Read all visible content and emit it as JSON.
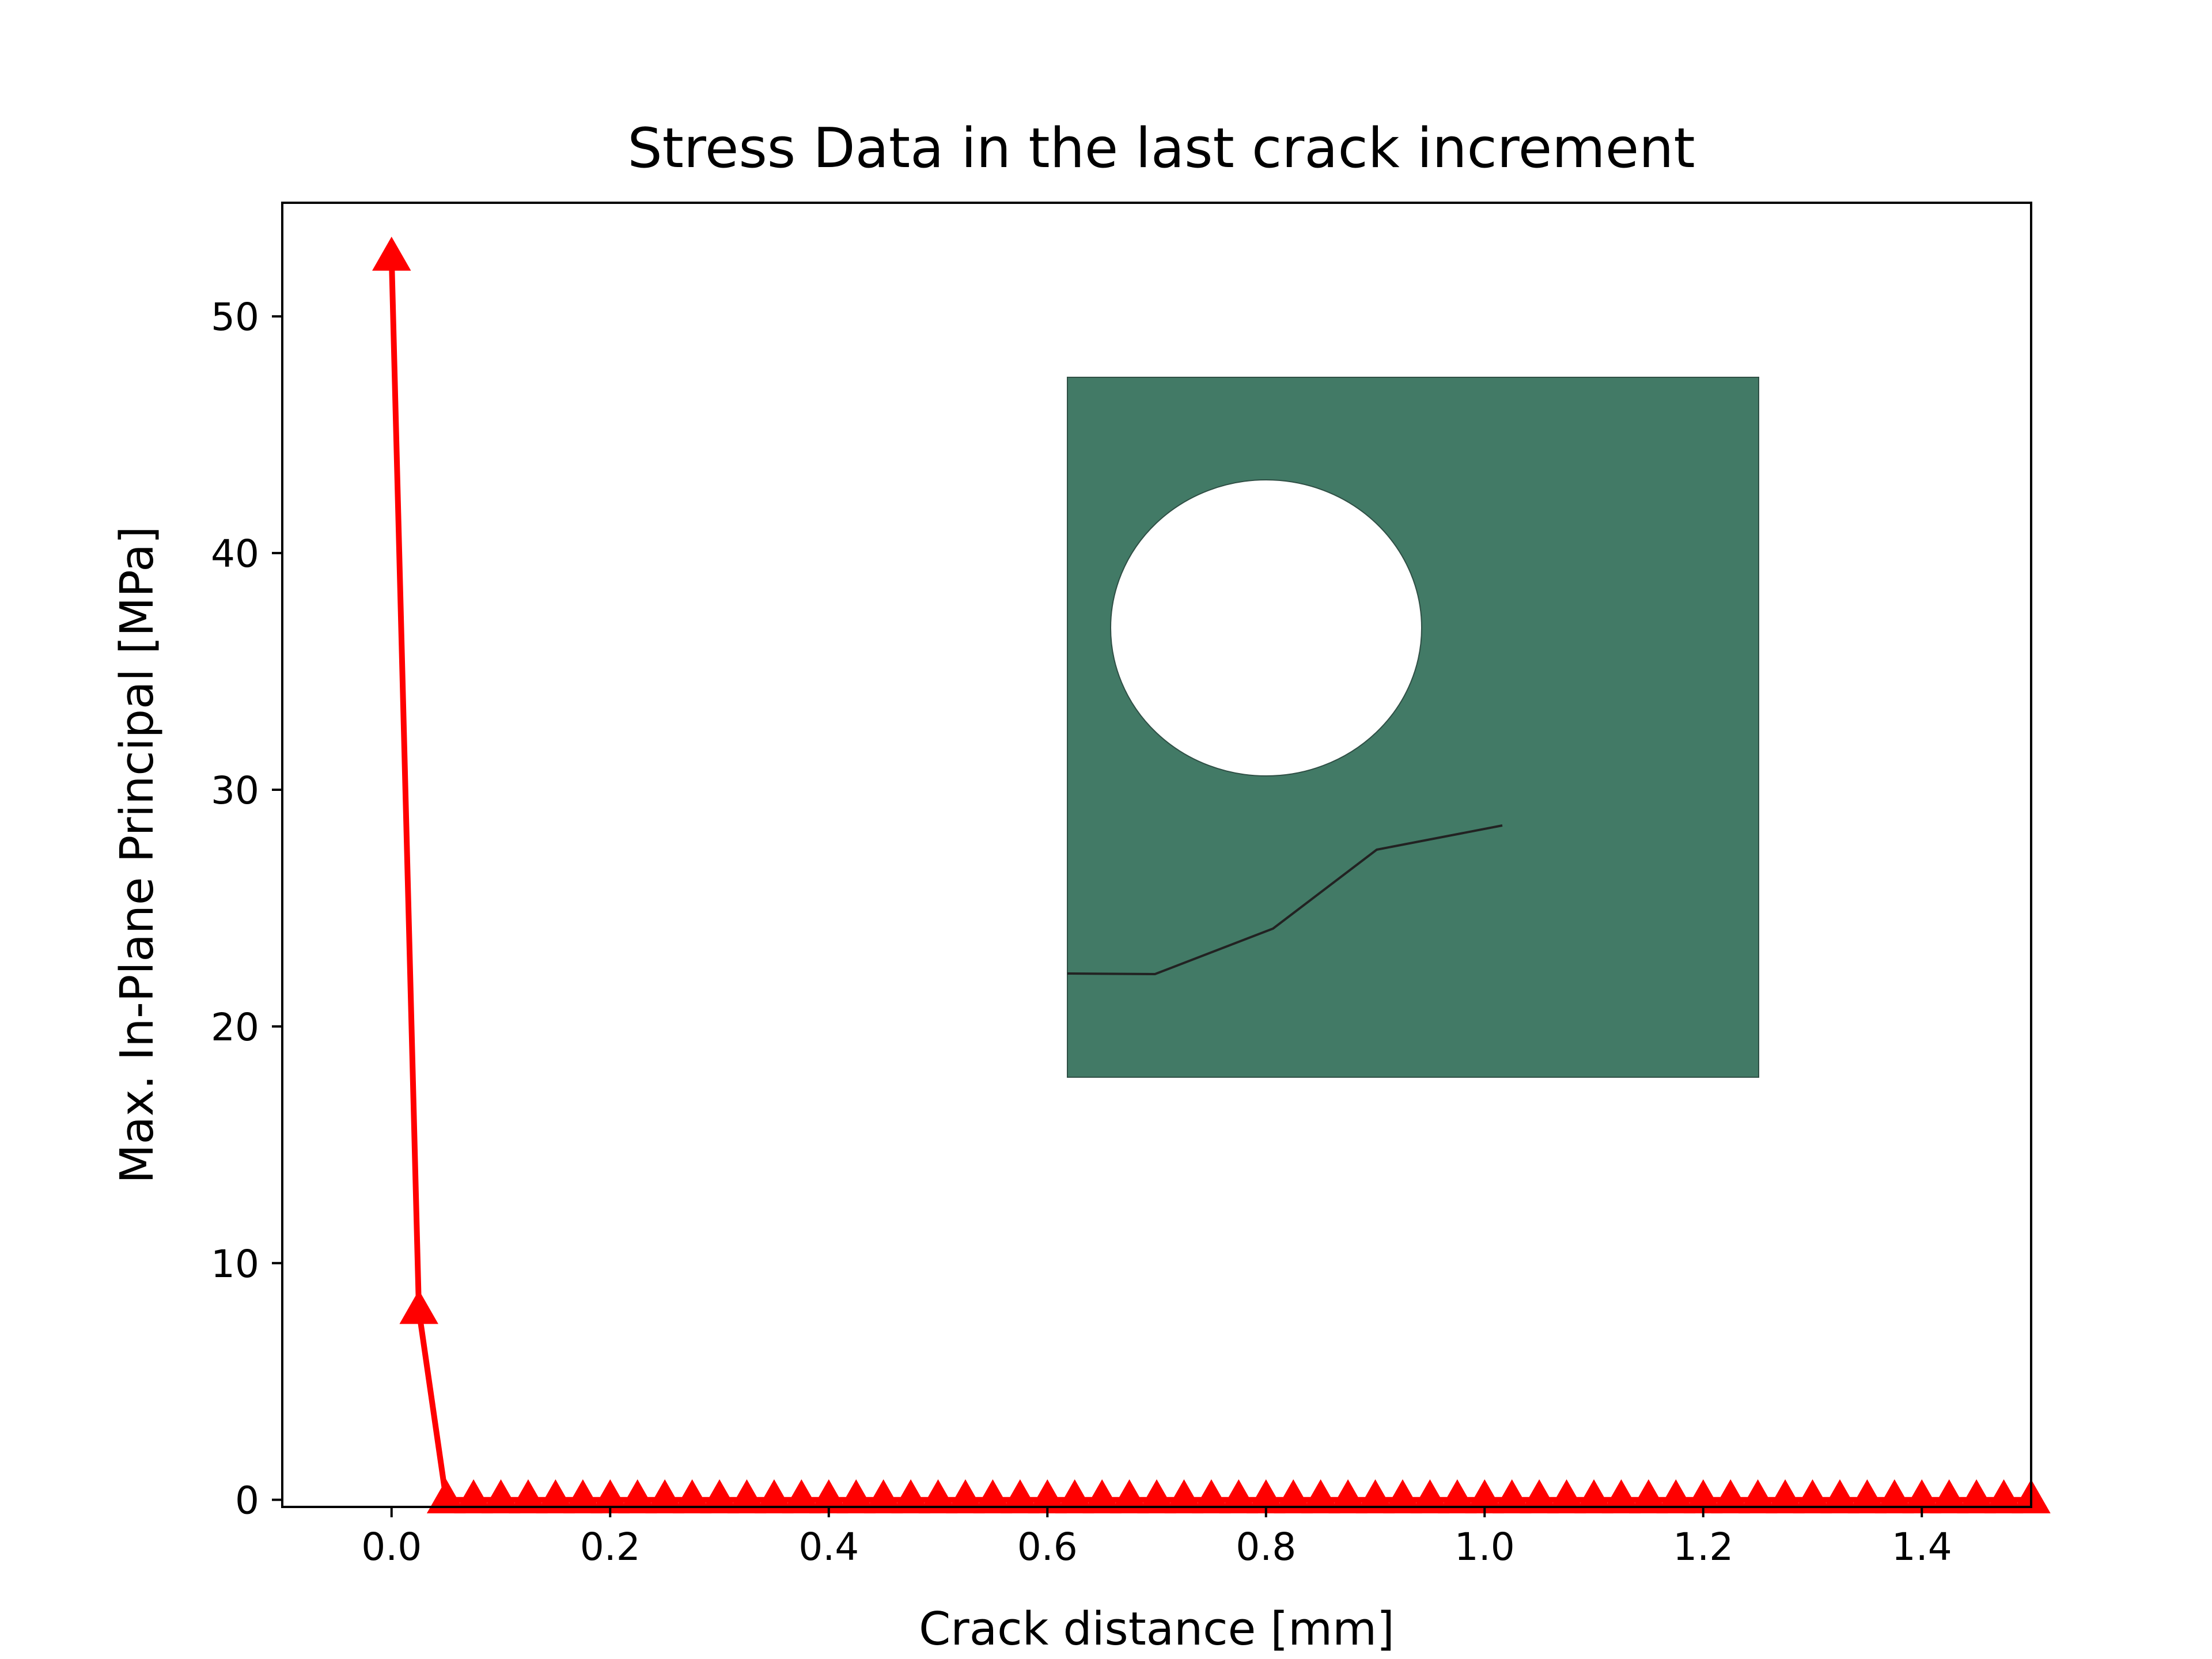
{
  "chart_data": {
    "type": "line",
    "title": "Stress Data in the last crack increment",
    "xlabel": "Crack distance [mm]",
    "ylabel": "Max. In-Plane Principal [MPa]",
    "xlim": [
      -0.1,
      1.5
    ],
    "ylim": [
      -0.3,
      54.8
    ],
    "xticks": [
      0.0,
      0.2,
      0.4,
      0.6,
      0.8,
      1.0,
      1.2,
      1.4
    ],
    "xtick_labels": [
      "0.0",
      "0.2",
      "0.4",
      "0.6",
      "0.8",
      "1.0",
      "1.2",
      "1.4"
    ],
    "yticks": [
      0,
      10,
      20,
      30,
      40,
      50
    ],
    "ytick_labels": [
      "0",
      "10",
      "20",
      "30",
      "40",
      "50"
    ],
    "grid": false,
    "legend": "none",
    "series": [
      {
        "color": "#ff0000",
        "marker": "triangle-up",
        "values_note": "",
        "x": [
          0.0,
          0.025,
          0.05,
          0.075,
          0.1,
          0.125,
          0.15,
          0.175,
          0.2,
          0.225,
          0.25,
          0.275,
          0.3,
          0.325,
          0.35,
          0.375,
          0.4,
          0.425,
          0.45,
          0.475,
          0.5,
          0.525,
          0.55,
          0.575,
          0.6,
          0.625,
          0.65,
          0.675,
          0.7,
          0.725,
          0.75,
          0.775,
          0.8,
          0.825,
          0.85,
          0.875,
          0.9,
          0.925,
          0.95,
          0.975,
          1.0,
          1.025,
          1.05,
          1.075,
          1.1,
          1.125,
          1.15,
          1.175,
          1.2,
          1.225,
          1.25,
          1.275,
          1.3,
          1.325,
          1.35,
          1.375,
          1.4,
          1.425,
          1.45,
          1.475,
          1.5
        ],
        "y": [
          52.5,
          8.0,
          0.0,
          0.0,
          0.0,
          0.0,
          0.0,
          0.0,
          0.0,
          0.0,
          0.0,
          0.0,
          0.0,
          0.0,
          0.0,
          0.0,
          0.0,
          0.0,
          0.0,
          0.0,
          0.0,
          0.0,
          0.0,
          0.0,
          0.0,
          0.0,
          0.0,
          0.0,
          0.0,
          0.0,
          0.0,
          0.0,
          0.0,
          0.0,
          0.0,
          0.0,
          0.0,
          0.0,
          0.0,
          0.0,
          0.0,
          0.0,
          0.0,
          0.0,
          0.0,
          0.0,
          0.0,
          0.0,
          0.0,
          0.0,
          0.0,
          0.0,
          0.0,
          0.0,
          0.0,
          0.0,
          0.0,
          0.0,
          0.0,
          0.0,
          0.0
        ]
      }
    ]
  },
  "inset": {
    "description_icon": "plate-with-hole-and-crack-icon",
    "plate_color": "#427a66",
    "hole_color": "#ffffff",
    "crack_color": "#222222"
  }
}
